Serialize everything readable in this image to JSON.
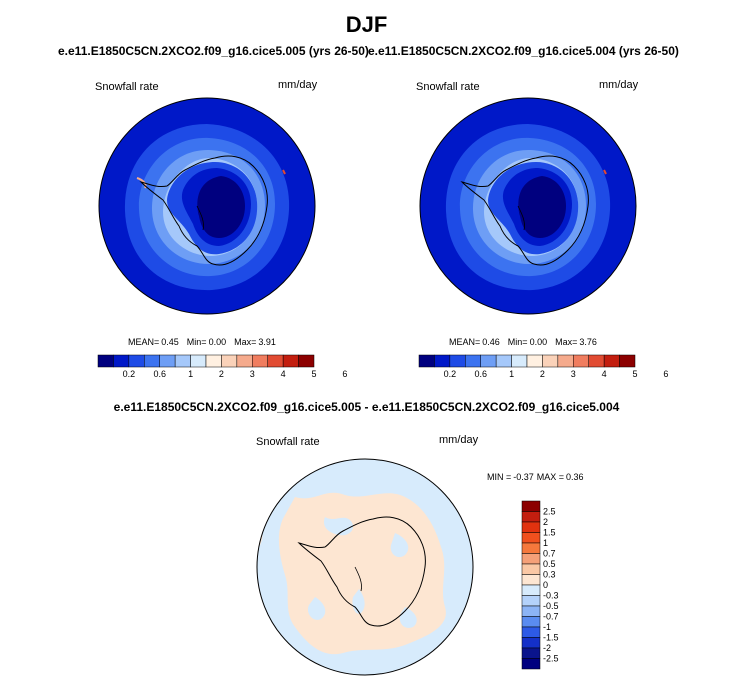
{
  "title": "DJF",
  "panels": [
    {
      "case": "e.e11.E1850C5CN.2XCO2.f09_g16.cice5.005 (yrs 26-50)",
      "variable": "Snowfall rate",
      "units": "mm/day",
      "mean_label": "MEAN=",
      "mean": "0.45",
      "min_label": "Min=",
      "min": "0.00",
      "max_label": "Max=",
      "max": "3.91"
    },
    {
      "case": "e.e11.E1850C5CN.2XCO2.f09_g16.cice5.004 (yrs 26-50)",
      "variable": "Snowfall rate",
      "units": "mm/day",
      "mean_label": "MEAN=",
      "mean": "0.46",
      "min_label": "Min=",
      "min": "0.00",
      "max_label": "Max=",
      "max": "3.76"
    }
  ],
  "colorbar": {
    "labels": [
      "0.2",
      "0.6",
      "1",
      "2",
      "3",
      "4",
      "5",
      "6"
    ],
    "colors": [
      "#00007f",
      "#0018c8",
      "#1e4be6",
      "#3c73f0",
      "#6e9ef5",
      "#a5c8fa",
      "#d7ebfc",
      "#fff0e1",
      "#fad2b9",
      "#f5aa8c",
      "#f07d5f",
      "#e14b32",
      "#c31e0f",
      "#8c0000"
    ]
  },
  "difference": {
    "title": "e.e11.E1850C5CN.2XCO2.f09_g16.cice5.005 - e.e11.E1850C5CN.2XCO2.f09_g16.cice5.004",
    "variable": "Snowfall rate",
    "units": "mm/day",
    "min_label": "MIN =",
    "min": "-0.37",
    "max_label": "MAX =",
    "max": "0.36",
    "colorbar_labels": [
      "2.5",
      "2",
      "1.5",
      "1",
      "0.7",
      "0.5",
      "0.3",
      "0",
      "-0.3",
      "-0.5",
      "-0.7",
      "-1",
      "-1.5",
      "-2",
      "-2.5"
    ],
    "colorbar_colors": [
      "#8c0000",
      "#c31e0f",
      "#e1320f",
      "#f0501e",
      "#f5783c",
      "#f5a078",
      "#fac8a5",
      "#fde6d2",
      "#d7ebfc",
      "#b4d2fa",
      "#8cb4f5",
      "#5a8cf0",
      "#2d5ae6",
      "#1430c8",
      "#0a148c",
      "#00007f"
    ]
  }
}
